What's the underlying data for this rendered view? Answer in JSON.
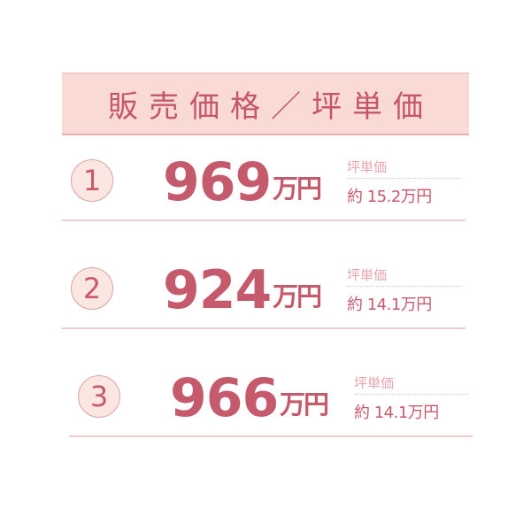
{
  "header": {
    "title": "販売価格／坪単価"
  },
  "rows": [
    {
      "number": "1",
      "price": "969",
      "unit": "万円",
      "tsubo_label": "坪単価",
      "tsubo_value": "約 15.2万円"
    },
    {
      "number": "2",
      "price": "924",
      "unit": "万円",
      "tsubo_label": "坪単価",
      "tsubo_value": "約 14.1万円"
    },
    {
      "number": "3",
      "price": "966",
      "unit": "万円",
      "tsubo_label": "坪単価",
      "tsubo_value": "約 14.1万円"
    }
  ],
  "colors": {
    "accent": "#c55a6c",
    "header_bg": "#f9dad5",
    "circle_bg": "#fce6e2"
  }
}
